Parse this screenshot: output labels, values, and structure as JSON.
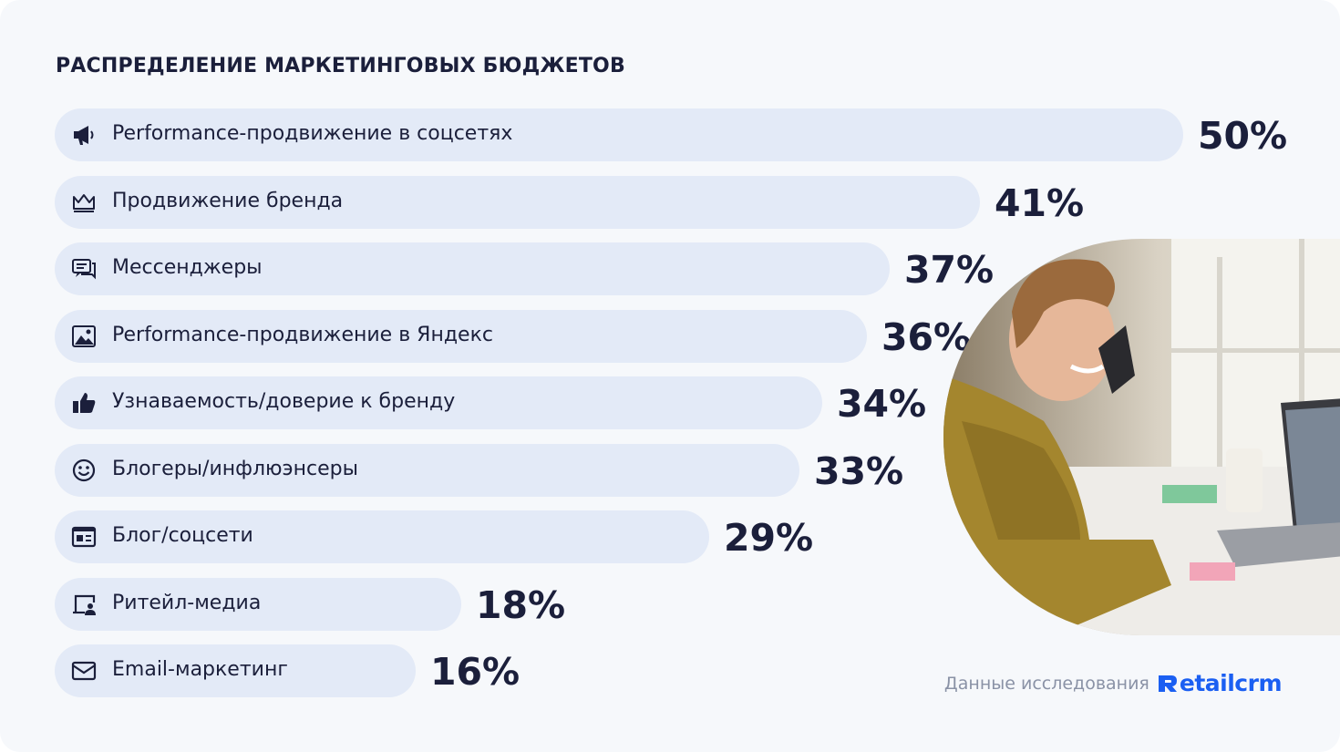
{
  "title": "РАСПРЕДЕЛЕНИЕ МАРКЕТИНГОВЫХ БЮДЖЕТОВ",
  "chart_data": {
    "type": "bar",
    "orientation": "horizontal",
    "title": "РАСПРЕДЕЛЕНИЕ МАРКЕТИНГОВЫХ БЮДЖЕТОВ",
    "categories": [
      "Performance-продвижение в соцсетях",
      "Продвижение бренда",
      "Мессенджеры",
      "Performance-продвижение в Яндекс",
      "Узнаваемость/доверие к бренду",
      "Блогеры/инфлюэнсеры",
      "Блог/соцсети",
      "Ритейл-медиа",
      "Email-маркетинг"
    ],
    "values": [
      50,
      41,
      37,
      36,
      34,
      33,
      29,
      18,
      16
    ],
    "value_labels": [
      "50%",
      "41%",
      "37%",
      "36%",
      "34%",
      "33%",
      "29%",
      "18%",
      "16%"
    ],
    "icons": [
      "megaphone-icon",
      "crown-icon",
      "chat-icon",
      "image-icon",
      "thumbs-up-icon",
      "smiley-icon",
      "browser-icon",
      "display-person-icon",
      "mail-icon"
    ],
    "bar_color": "#e3eaf7",
    "text_color": "#1b1f3b"
  },
  "footer": {
    "source_text": "Данные исследования",
    "logo_text": "etailcrm",
    "logo_color": "#1b5ff2"
  }
}
